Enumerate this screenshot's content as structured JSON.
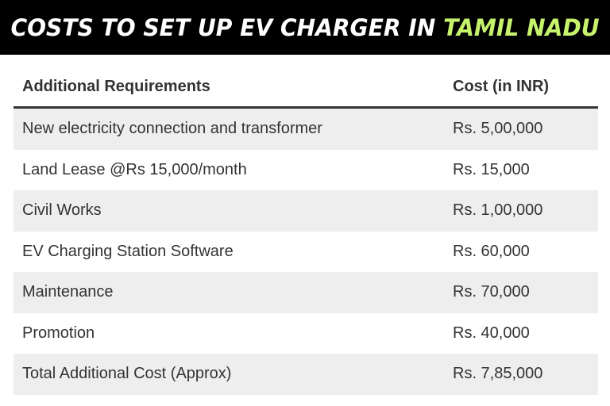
{
  "banner": {
    "title_main": "COSTS TO SET UP EV CHARGER IN ",
    "title_accent": "TAMIL NADU",
    "background": "#000000",
    "accent_color": "#c6f36b"
  },
  "table": {
    "headers": {
      "requirement": "Additional Requirements",
      "cost": "Cost (in INR)"
    },
    "rows": [
      {
        "requirement": "New electricity connection and transformer",
        "cost": "Rs. 5,00,000"
      },
      {
        "requirement": "Land Lease @Rs 15,000/month",
        "cost": "Rs. 15,000"
      },
      {
        "requirement": "Civil Works",
        "cost": "Rs. 1,00,000"
      },
      {
        "requirement": "EV Charging Station Software",
        "cost": "Rs. 60,000"
      },
      {
        "requirement": "Maintenance",
        "cost": "Rs. 70,000"
      },
      {
        "requirement": "Promotion",
        "cost": "Rs. 40,000"
      },
      {
        "requirement": "Total Additional Cost (Approx)",
        "cost": "Rs. 7,85,000"
      }
    ],
    "shade_color": "#eeeeee"
  }
}
